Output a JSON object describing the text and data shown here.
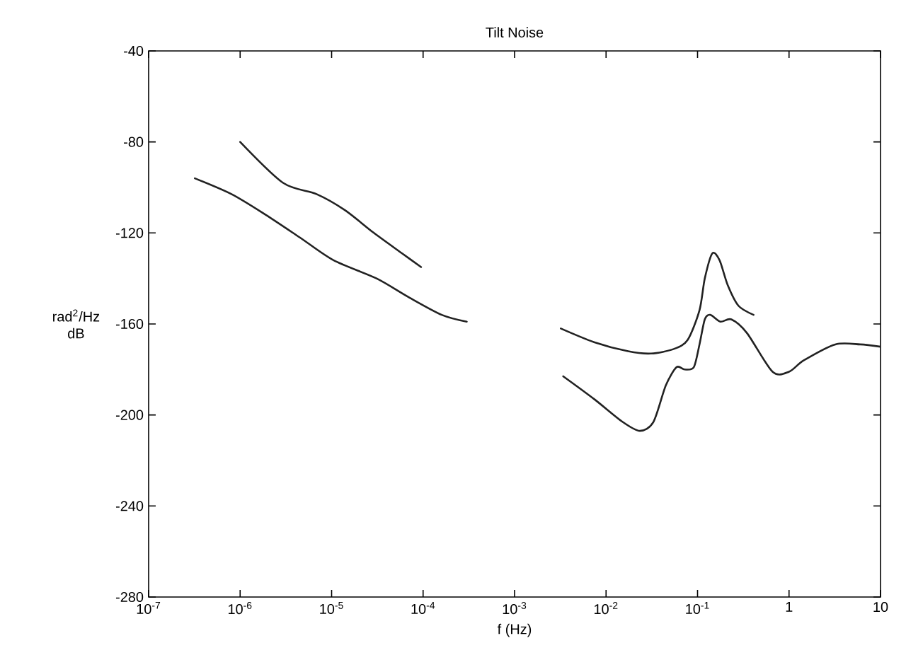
{
  "chart_data": {
    "type": "line",
    "title": "Tilt Noise",
    "xlabel": "f (Hz)",
    "ylabel": "rad$^{2}$/Hz dB",
    "log": "x",
    "grid": false,
    "marker": "none",
    "line_style": "solid",
    "xlim": [
      1e-07,
      10
    ],
    "ylim": [
      -280,
      -40
    ],
    "xticks": [
      {
        "value": 1e-07,
        "label": "10$^{-7}$"
      },
      {
        "value": 1e-06,
        "label": "10$^{-6}$"
      },
      {
        "value": 1e-05,
        "label": "10$^{-5}$"
      },
      {
        "value": 0.0001,
        "label": "10$^{-4}$"
      },
      {
        "value": 0.001,
        "label": "10$^{-3}$"
      },
      {
        "value": 0.01,
        "label": "10$^{-2}$"
      },
      {
        "value": 0.1,
        "label": "10$^{-1}$"
      },
      {
        "value": 1,
        "label": "1"
      },
      {
        "value": 10,
        "label": "10"
      }
    ],
    "yticks": [
      -280,
      -240,
      -200,
      -160,
      -120,
      -80,
      -40
    ],
    "series": [
      {
        "color": "#222222",
        "x": [
          1e-06,
          2.95e-06,
          6.9e-06,
          1.4e-05,
          2.9e-05,
          5.9e-05,
          9.5e-05
        ],
        "values": [
          -80,
          -98,
          -103,
          -110,
          -120,
          -129,
          -135
        ]
      },
      {
        "color": "#222222",
        "x": [
          3.2e-07,
          8.1e-07,
          1.9e-06,
          4.5e-06,
          1.05e-05,
          3.1e-05,
          6.8e-05,
          0.00016,
          0.0003
        ],
        "values": [
          -96,
          -103,
          -112,
          -122,
          -132,
          -140,
          -148,
          -156,
          -159
        ]
      },
      {
        "color": "#222222",
        "x": [
          0.0032,
          0.0074,
          0.0174,
          0.031,
          0.055,
          0.078,
          0.105,
          0.12,
          0.145,
          0.174,
          0.214,
          0.28,
          0.41
        ],
        "values": [
          -162,
          -168,
          -172,
          -173,
          -171,
          -167,
          -154,
          -140,
          -129,
          -132,
          -143,
          -152,
          -156
        ]
      },
      {
        "color": "#222222",
        "x": [
          0.0034,
          0.0074,
          0.0151,
          0.0234,
          0.033,
          0.045,
          0.059,
          0.072,
          0.091,
          0.105,
          0.12,
          0.138,
          0.178,
          0.234,
          0.347,
          0.66,
          1.0,
          1.45,
          3.2,
          6.0,
          10
        ],
        "values": [
          -183,
          -193,
          -203,
          -207,
          -203,
          -187,
          -179,
          -180,
          -179,
          -169,
          -158,
          -156,
          -159,
          -158,
          -164,
          -181,
          -181,
          -176,
          -169,
          -169,
          -170
        ]
      }
    ]
  }
}
